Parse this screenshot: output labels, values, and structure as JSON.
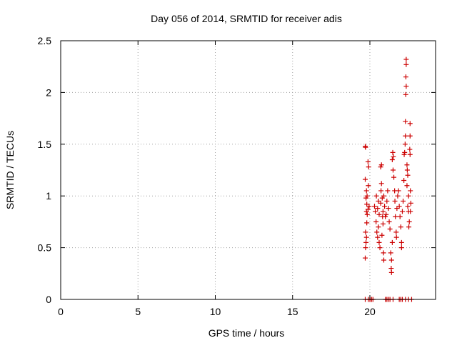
{
  "colors": {
    "series": "#cc0000",
    "grid": "#a0a0a0",
    "axis": "#000000"
  },
  "chart_data": {
    "type": "scatter",
    "title": "Day 056 of 2014, SRMTID for receiver adis",
    "xlabel": "GPS time / hours",
    "ylabel": "SRMTID / TECUs",
    "xlim": [
      0,
      24.25
    ],
    "ylim": [
      0,
      2.5
    ],
    "grid": true,
    "marker": "plus",
    "xticks": [
      0,
      5,
      10,
      15,
      20
    ],
    "xtick_labels": [
      "0",
      "5",
      "10",
      "15",
      "20"
    ],
    "yticks": [
      0,
      0.5,
      1,
      1.5,
      2,
      2.5
    ],
    "ytick_labels": [
      "0",
      "0.5",
      "1",
      "1.5",
      "2",
      "2.5"
    ],
    "series": [
      {
        "name": "SRMTID",
        "points": [
          [
            19.7,
            1.48
          ],
          [
            19.72,
            1.47
          ],
          [
            19.7,
            1.16
          ],
          [
            19.78,
            1.05
          ],
          [
            19.82,
            1.0
          ],
          [
            19.75,
            0.98
          ],
          [
            19.8,
            0.92
          ],
          [
            19.78,
            0.85
          ],
          [
            19.83,
            0.82
          ],
          [
            19.8,
            0.74
          ],
          [
            19.72,
            0.65
          ],
          [
            19.78,
            0.6
          ],
          [
            19.75,
            0.55
          ],
          [
            19.72,
            0.5
          ],
          [
            19.7,
            0.4
          ],
          [
            19.88,
            1.33
          ],
          [
            19.92,
            1.28
          ],
          [
            19.9,
            1.1
          ],
          [
            19.95,
            0.9
          ],
          [
            19.88,
            0.87
          ],
          [
            19.9,
            0.0
          ],
          [
            19.7,
            0.0
          ],
          [
            20.0,
            0.0
          ],
          [
            20.1,
            0.0
          ],
          [
            20.3,
            0.9
          ],
          [
            20.35,
            0.85
          ],
          [
            20.4,
            0.75
          ],
          [
            20.45,
            0.65
          ],
          [
            20.5,
            0.6
          ],
          [
            20.42,
            1.0
          ],
          [
            20.55,
            0.95
          ],
          [
            20.5,
            0.88
          ],
          [
            20.6,
            0.82
          ],
          [
            20.55,
            0.7
          ],
          [
            20.6,
            0.55
          ],
          [
            20.65,
            0.5
          ],
          [
            20.7,
            0.93
          ],
          [
            20.72,
            1.05
          ],
          [
            20.75,
            1.12
          ],
          [
            20.7,
            1.28
          ],
          [
            20.75,
            1.3
          ],
          [
            20.8,
            0.98
          ],
          [
            20.82,
            0.8
          ],
          [
            20.85,
            0.73
          ],
          [
            20.78,
            0.62
          ],
          [
            20.88,
            0.45
          ],
          [
            20.9,
            0.38
          ],
          [
            20.85,
            0.85
          ],
          [
            20.9,
            1.0
          ],
          [
            20.95,
            0.9
          ],
          [
            21.0,
            0.8
          ],
          [
            21.05,
            0.82
          ],
          [
            21.1,
            0.95
          ],
          [
            21.15,
            1.05
          ],
          [
            21.2,
            0.88
          ],
          [
            21.25,
            0.75
          ],
          [
            21.3,
            0.68
          ],
          [
            21.35,
            0.45
          ],
          [
            21.4,
            0.38
          ],
          [
            21.38,
            0.3
          ],
          [
            21.4,
            0.26
          ],
          [
            21.45,
            0.55
          ],
          [
            21.45,
            1.35
          ],
          [
            21.48,
            1.42
          ],
          [
            21.52,
            1.38
          ],
          [
            21.5,
            1.25
          ],
          [
            21.55,
            1.18
          ],
          [
            21.6,
            1.05
          ],
          [
            21.62,
            0.95
          ],
          [
            21.65,
            0.8
          ],
          [
            21.7,
            0.65
          ],
          [
            21.72,
            0.6
          ],
          [
            21.75,
            0.88
          ],
          [
            21.8,
            1.0
          ],
          [
            21.85,
            1.05
          ],
          [
            21.9,
            0.9
          ],
          [
            21.95,
            0.8
          ],
          [
            22.0,
            0.7
          ],
          [
            22.05,
            0.55
          ],
          [
            22.05,
            0.5
          ],
          [
            22.1,
            0.85
          ],
          [
            22.15,
            0.95
          ],
          [
            22.2,
            1.15
          ],
          [
            22.22,
            1.4
          ],
          [
            22.25,
            1.42
          ],
          [
            22.28,
            1.5
          ],
          [
            22.3,
            1.58
          ],
          [
            22.3,
            1.72
          ],
          [
            22.32,
            1.98
          ],
          [
            22.35,
            2.06
          ],
          [
            22.33,
            2.15
          ],
          [
            22.35,
            2.27
          ],
          [
            22.35,
            2.32
          ],
          [
            22.4,
            1.3
          ],
          [
            22.42,
            1.25
          ],
          [
            22.45,
            1.2
          ],
          [
            22.4,
            1.1
          ],
          [
            22.5,
            1.0
          ],
          [
            22.45,
            0.9
          ],
          [
            22.5,
            0.85
          ],
          [
            22.55,
            0.75
          ],
          [
            22.52,
            0.7
          ],
          [
            22.58,
            1.45
          ],
          [
            22.6,
            1.58
          ],
          [
            22.6,
            1.7
          ],
          [
            22.6,
            1.4
          ],
          [
            22.62,
            1.05
          ],
          [
            22.65,
            0.93
          ],
          [
            22.62,
            0.85
          ],
          [
            20.1,
            0.0
          ],
          [
            20.2,
            0.0
          ],
          [
            21.0,
            0.0
          ],
          [
            21.1,
            0.0
          ],
          [
            21.2,
            0.0
          ],
          [
            21.3,
            0.0
          ],
          [
            21.5,
            0.0
          ],
          [
            21.9,
            0.0
          ],
          [
            22.0,
            0.0
          ],
          [
            22.1,
            0.0
          ],
          [
            22.3,
            0.0
          ],
          [
            22.5,
            0.0
          ],
          [
            22.7,
            0.0
          ]
        ]
      }
    ]
  }
}
